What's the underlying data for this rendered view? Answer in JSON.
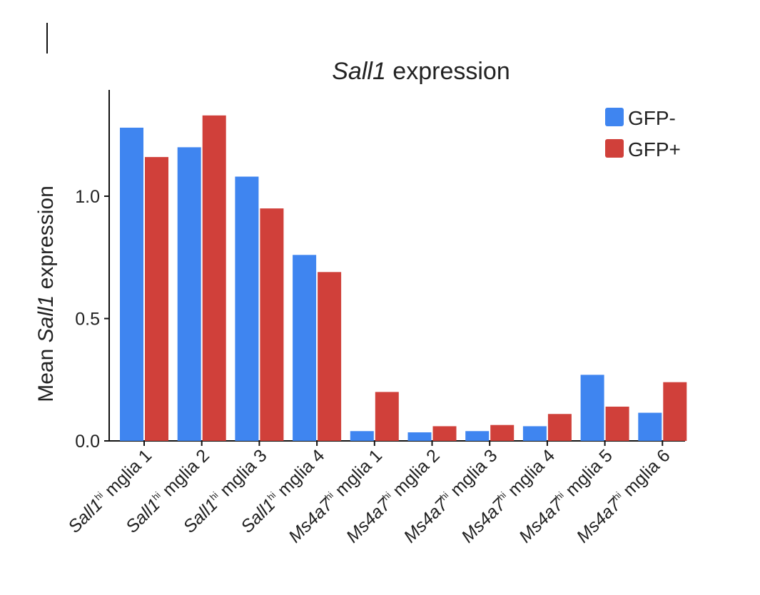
{
  "chart_data": {
    "type": "bar",
    "title": {
      "italic": "Sall1",
      "rest": " expression"
    },
    "ylabel": {
      "pre": "Mean ",
      "italic": "Sall1",
      "post": " expression"
    },
    "xlabel": "",
    "ylim": [
      0,
      1.4
    ],
    "yticks": [
      {
        "value": 0.0,
        "label": "0.0"
      },
      {
        "value": 0.5,
        "label": "0.5"
      },
      {
        "value": 1.0,
        "label": "1.0"
      }
    ],
    "categories": [
      {
        "gene": "Sall1",
        "sup": "hi",
        "rest": " mglia 1"
      },
      {
        "gene": "Sall1",
        "sup": "hi",
        "rest": " mglia 2"
      },
      {
        "gene": "Sall1",
        "sup": "hi",
        "rest": " mglia 3"
      },
      {
        "gene": "Sall1",
        "sup": "hi",
        "rest": " mglia 4"
      },
      {
        "gene": "Ms4a7",
        "sup": "hi",
        "rest": " mglia 1"
      },
      {
        "gene": "Ms4a7",
        "sup": "hi",
        "rest": " mglia 2"
      },
      {
        "gene": "Ms4a7",
        "sup": "hi",
        "rest": " mglia 3"
      },
      {
        "gene": "Ms4a7",
        "sup": "hi",
        "rest": " mglia 4"
      },
      {
        "gene": "Ms4a7",
        "sup": "hi",
        "rest": " mglia 5"
      },
      {
        "gene": "Ms4a7",
        "sup": "hi",
        "rest": " mglia 6"
      }
    ],
    "series": [
      {
        "name": "GFP-",
        "color": "#3f85f0",
        "values": [
          1.28,
          1.2,
          1.08,
          0.76,
          0.04,
          0.035,
          0.04,
          0.06,
          0.27,
          0.115
        ]
      },
      {
        "name": "GFP+",
        "color": "#d0403a",
        "values": [
          1.16,
          1.33,
          0.95,
          0.69,
          0.2,
          0.06,
          0.065,
          0.11,
          0.14,
          0.24
        ]
      }
    ],
    "legend_position": "top-right",
    "grid": false
  }
}
